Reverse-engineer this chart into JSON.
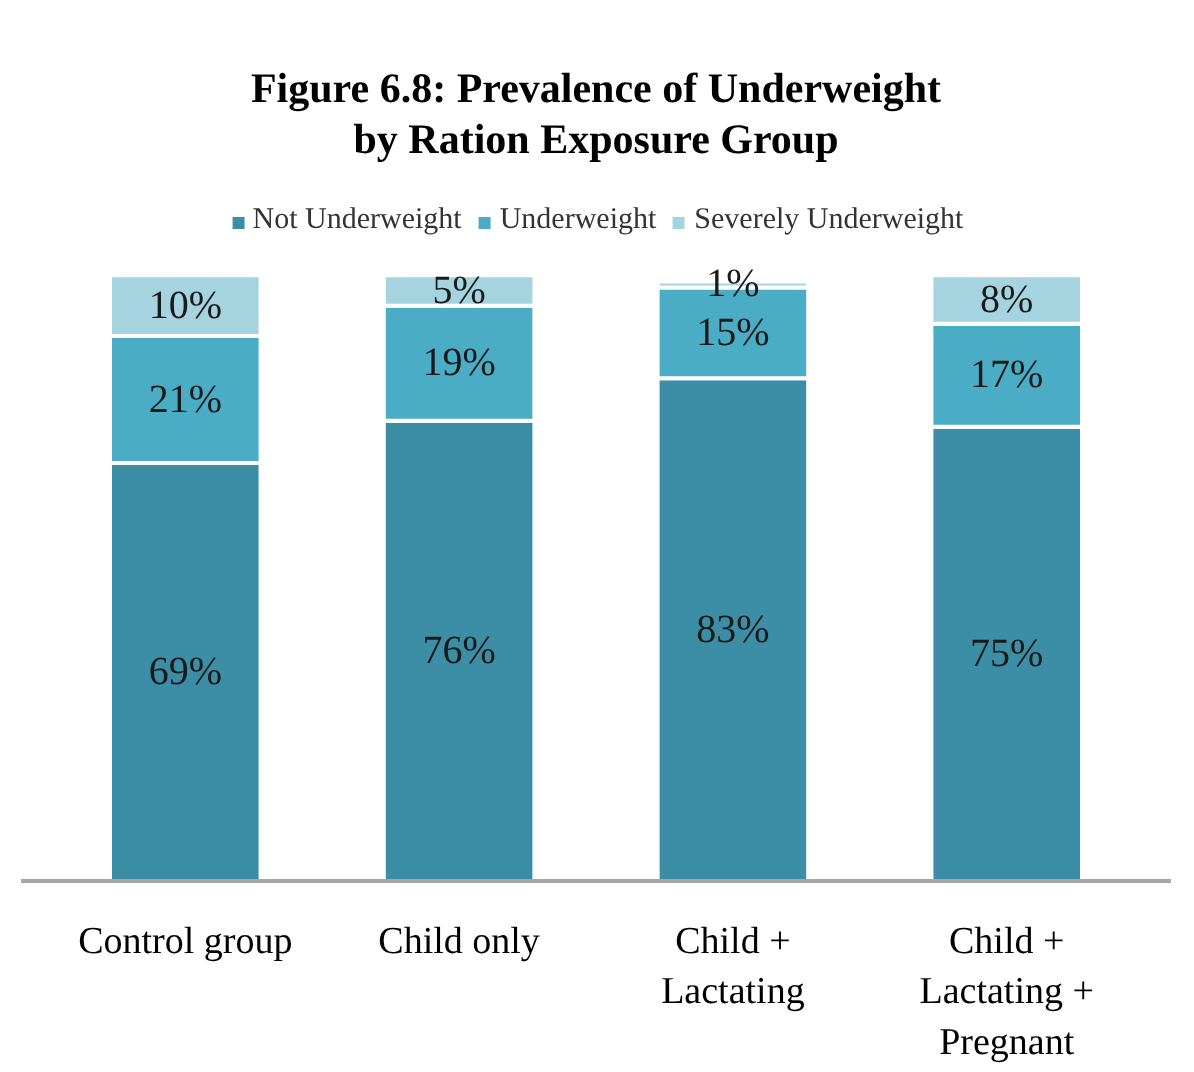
{
  "chart_data": {
    "type": "bar",
    "stacked": true,
    "title": "Figure 6.8: Prevalence of Underweight\nby Ration Exposure Group",
    "categories": [
      "Control group",
      "Child only",
      "Child +\nLactating",
      "Child +\nLactating +\nPregnant"
    ],
    "series": [
      {
        "name": "Not Underweight",
        "color": "#3b8ea5",
        "values": [
          69,
          76,
          83,
          75
        ],
        "value_labels": [
          "69%",
          "76%",
          "83%",
          "75%"
        ]
      },
      {
        "name": "Underweight",
        "color": "#4bacc6",
        "values": [
          21,
          19,
          15,
          17
        ],
        "value_labels": [
          "21%",
          "19%",
          "15%",
          "17%"
        ]
      },
      {
        "name": "Severely Underweight",
        "color": "#a5d3e0",
        "values": [
          10,
          5,
          1,
          8
        ],
        "value_labels": [
          "10%",
          "5%",
          "1%",
          "8%"
        ]
      }
    ],
    "legend": "top"
  }
}
